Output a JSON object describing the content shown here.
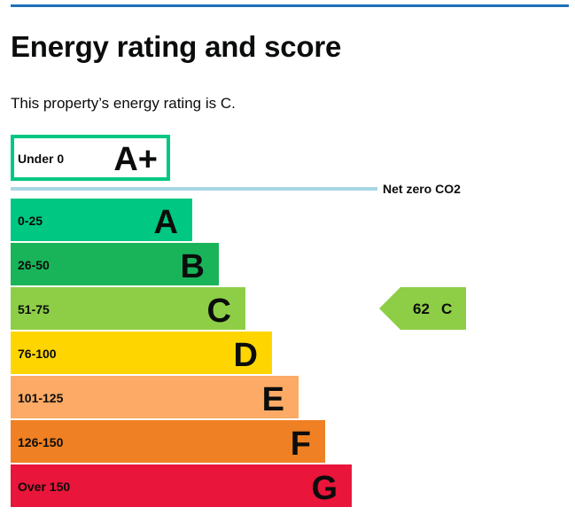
{
  "page": {
    "title": "Energy rating and score",
    "summary": "This property’s energy rating is C."
  },
  "chart_data": {
    "type": "bar",
    "title": "",
    "xlabel": "",
    "ylabel": "",
    "net_zero_label": "Net zero CO2",
    "bands": [
      {
        "range": "Under 0",
        "letter": "A+",
        "color": "#00c781",
        "style": "outline"
      },
      {
        "range": "0-25",
        "letter": "A",
        "color": "#00c781",
        "style": "filled"
      },
      {
        "range": "26-50",
        "letter": "B",
        "color": "#19b459",
        "style": "filled"
      },
      {
        "range": "51-75",
        "letter": "C",
        "color": "#8dce46",
        "style": "filled"
      },
      {
        "range": "76-100",
        "letter": "D",
        "color": "#ffd500",
        "style": "filled"
      },
      {
        "range": "101-125",
        "letter": "E",
        "color": "#fcaa65",
        "style": "filled"
      },
      {
        "range": "126-150",
        "letter": "F",
        "color": "#ef8023",
        "style": "filled"
      },
      {
        "range": "Over 150",
        "letter": "G",
        "color": "#e9153b",
        "style": "filled"
      }
    ],
    "current": {
      "score": 62,
      "letter": "C",
      "color": "#8dce46"
    },
    "netzero_line_color": "#a9d6e5"
  }
}
